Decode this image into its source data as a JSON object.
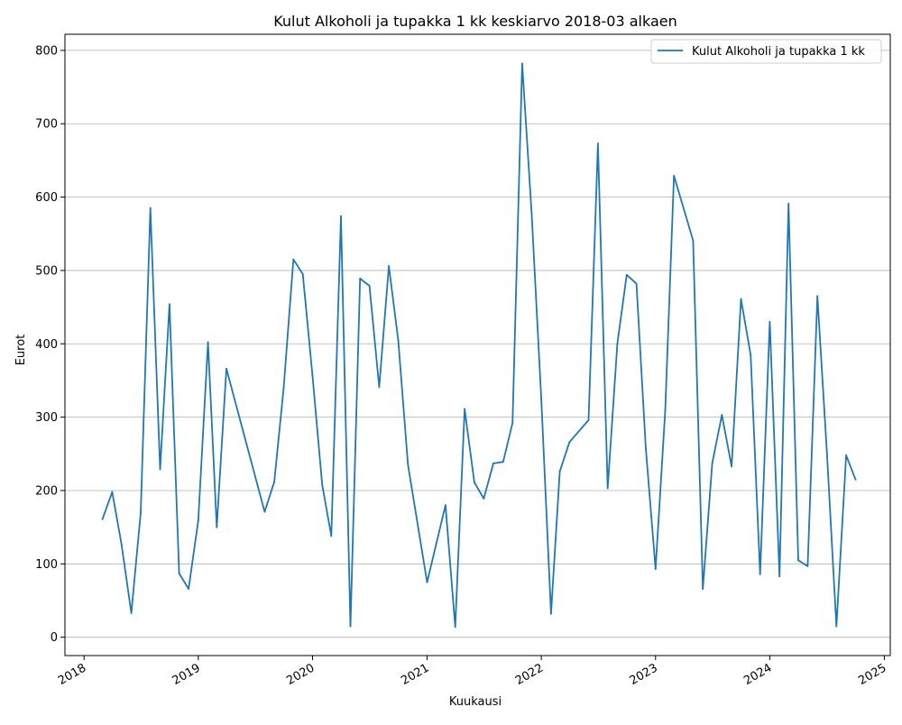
{
  "chart_data": {
    "type": "line",
    "title": "Kulut Alkoholi ja tupakka 1 kk keskiarvo 2018-03 alkaen",
    "xlabel": "Kuukausi",
    "ylabel": "Eurot",
    "legend_position": "top-right",
    "grid": "horizontal",
    "x_tick_labels": [
      "2018",
      "2019",
      "2020",
      "2021",
      "2022",
      "2023",
      "2024",
      "2025"
    ],
    "y_tick_labels": [
      "0",
      "100",
      "200",
      "300",
      "400",
      "500",
      "600",
      "700",
      "800"
    ],
    "ylim": [
      -25,
      822
    ],
    "xlim": [
      "2017-11-01",
      "2025-01-20"
    ],
    "colors": {
      "line": "#1f77b4",
      "grid": "#b0b0b0"
    },
    "series": [
      {
        "name": "Kulut Alkoholi ja tupakka 1 kk",
        "points": [
          [
            "2018-03-01",
            161
          ],
          [
            "2018-04-01",
            198
          ],
          [
            "2018-05-01",
            126
          ],
          [
            "2018-06-01",
            33
          ],
          [
            "2018-07-01",
            170
          ],
          [
            "2018-08-01",
            585
          ],
          [
            "2018-09-01",
            229
          ],
          [
            "2018-10-01",
            454
          ],
          [
            "2018-11-01",
            87
          ],
          [
            "2018-12-01",
            66
          ],
          [
            "2019-01-01",
            159
          ],
          [
            "2019-02-01",
            402
          ],
          [
            "2019-03-01",
            150
          ],
          [
            "2019-04-01",
            366
          ],
          [
            "2019-08-01",
            171
          ],
          [
            "2019-09-01",
            212
          ],
          [
            "2019-10-01",
            340
          ],
          [
            "2019-11-01",
            515
          ],
          [
            "2019-12-01",
            495
          ],
          [
            "2020-01-01",
            356
          ],
          [
            "2020-02-01",
            208
          ],
          [
            "2020-03-01",
            138
          ],
          [
            "2020-04-01",
            574
          ],
          [
            "2020-05-01",
            15
          ],
          [
            "2020-06-01",
            489
          ],
          [
            "2020-07-01",
            479
          ],
          [
            "2020-08-01",
            341
          ],
          [
            "2020-09-01",
            506
          ],
          [
            "2020-10-01",
            405
          ],
          [
            "2020-11-01",
            235
          ],
          [
            "2021-01-01",
            75
          ],
          [
            "2021-03-01",
            180
          ],
          [
            "2021-04-01",
            14
          ],
          [
            "2021-05-01",
            311
          ],
          [
            "2021-06-01",
            211
          ],
          [
            "2021-07-01",
            189
          ],
          [
            "2021-08-01",
            237
          ],
          [
            "2021-09-01",
            239
          ],
          [
            "2021-10-01",
            292
          ],
          [
            "2021-11-01",
            782
          ],
          [
            "2021-12-01",
            578
          ],
          [
            "2022-01-01",
            325
          ],
          [
            "2022-02-01",
            32
          ],
          [
            "2022-03-01",
            226
          ],
          [
            "2022-04-01",
            266
          ],
          [
            "2022-06-01",
            296
          ],
          [
            "2022-07-01",
            673
          ],
          [
            "2022-08-01",
            203
          ],
          [
            "2022-09-01",
            400
          ],
          [
            "2022-10-01",
            494
          ],
          [
            "2022-11-01",
            482
          ],
          [
            "2022-12-01",
            257
          ],
          [
            "2023-01-01",
            93
          ],
          [
            "2023-02-01",
            309
          ],
          [
            "2023-03-01",
            629
          ],
          [
            "2023-05-01",
            541
          ],
          [
            "2023-06-01",
            66
          ],
          [
            "2023-07-01",
            237
          ],
          [
            "2023-08-01",
            303
          ],
          [
            "2023-09-01",
            233
          ],
          [
            "2023-10-01",
            461
          ],
          [
            "2023-11-01",
            385
          ],
          [
            "2023-12-01",
            86
          ],
          [
            "2024-01-01",
            430
          ],
          [
            "2024-02-01",
            83
          ],
          [
            "2024-03-01",
            591
          ],
          [
            "2024-04-01",
            105
          ],
          [
            "2024-05-01",
            97
          ],
          [
            "2024-06-01",
            465
          ],
          [
            "2024-07-01",
            255
          ],
          [
            "2024-08-01",
            15
          ],
          [
            "2024-09-01",
            248
          ],
          [
            "2024-10-01",
            215
          ]
        ]
      }
    ]
  }
}
